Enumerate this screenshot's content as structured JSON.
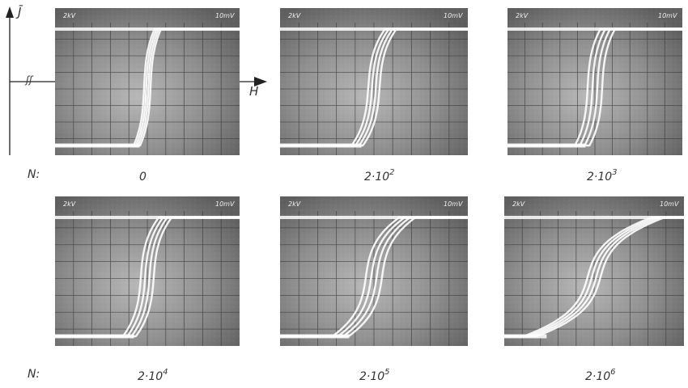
{
  "figure": {
    "axes_inset": {
      "y_label": "J̄",
      "x_label": "H",
      "origin_marker": "ʃʃ"
    },
    "row_prefix": "N:",
    "panel_header": {
      "left": "2kV",
      "right": "10mV"
    },
    "panels": [
      {
        "base": "0",
        "exp": "",
        "spread": 4,
        "slope": 0.35
      },
      {
        "base": "2·10",
        "exp": "2",
        "spread": 7,
        "slope": 0.55
      },
      {
        "base": "2·10",
        "exp": "3",
        "spread": 9,
        "slope": 0.45
      },
      {
        "base": "2·10",
        "exp": "4",
        "spread": 8,
        "slope": 0.6
      },
      {
        "base": "2·10",
        "exp": "5",
        "spread": 10,
        "slope": 1.1
      },
      {
        "base": "2·10",
        "exp": "6",
        "spread": 8,
        "slope": 2.2
      }
    ]
  }
}
